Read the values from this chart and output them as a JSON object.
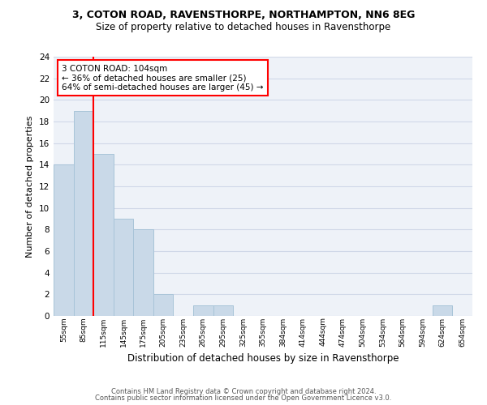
{
  "title1": "3, COTON ROAD, RAVENSTHORPE, NORTHAMPTON, NN6 8EG",
  "title2": "Size of property relative to detached houses in Ravensthorpe",
  "xlabel": "Distribution of detached houses by size in Ravensthorpe",
  "ylabel": "Number of detached properties",
  "categories": [
    "55sqm",
    "85sqm",
    "115sqm",
    "145sqm",
    "175sqm",
    "205sqm",
    "235sqm",
    "265sqm",
    "295sqm",
    "325sqm",
    "355sqm",
    "384sqm",
    "414sqm",
    "444sqm",
    "474sqm",
    "504sqm",
    "534sqm",
    "564sqm",
    "594sqm",
    "624sqm",
    "654sqm"
  ],
  "values": [
    14,
    19,
    15,
    9,
    8,
    2,
    0,
    1,
    1,
    0,
    0,
    0,
    0,
    0,
    0,
    0,
    0,
    0,
    0,
    1,
    0
  ],
  "bar_color": "#c9d9e8",
  "bar_edge_color": "#a8c4d8",
  "grid_color": "#d0d8e8",
  "red_line_x": 1.5,
  "annotation_text": "3 COTON ROAD: 104sqm\n← 36% of detached houses are smaller (25)\n64% of semi-detached houses are larger (45) →",
  "annotation_box_color": "white",
  "annotation_box_edge_color": "red",
  "ylim": [
    0,
    24
  ],
  "yticks": [
    0,
    2,
    4,
    6,
    8,
    10,
    12,
    14,
    16,
    18,
    20,
    22,
    24
  ],
  "footer1": "Contains HM Land Registry data © Crown copyright and database right 2024.",
  "footer2": "Contains public sector information licensed under the Open Government Licence v3.0.",
  "bg_color": "#eef2f8",
  "title1_fontsize": 9,
  "title2_fontsize": 8.5,
  "ylabel_fontsize": 8,
  "xlabel_fontsize": 8.5,
  "xtick_fontsize": 6.5,
  "ytick_fontsize": 7.5,
  "annotation_fontsize": 7.5,
  "footer_fontsize": 6
}
